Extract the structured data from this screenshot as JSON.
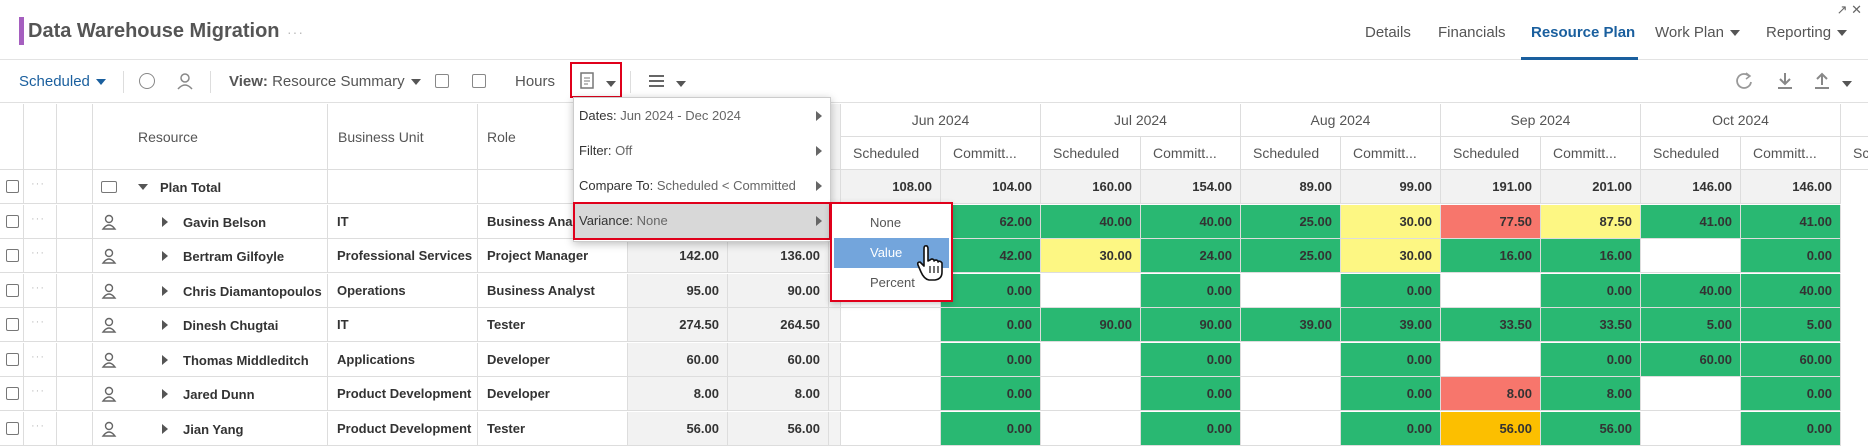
{
  "header": {
    "title": "Data Warehouse Migration",
    "more": "···",
    "tabs": [
      "Details",
      "Financials",
      "Resource Plan",
      "Work Plan",
      "Reporting"
    ],
    "active_tab": "Resource Plan",
    "window_icons": "↗ ✕"
  },
  "toolbar": {
    "scheduled_label": "Scheduled",
    "view_prefix": "View:",
    "view_value": "Resource Summary",
    "hours_label": "Hours"
  },
  "columns": {
    "resource": "Resource",
    "business_unit": "Business Unit",
    "role": "Role",
    "months": [
      "Jun 2024",
      "Jul 2024",
      "Aug 2024",
      "Sep 2024",
      "Oct 2024"
    ],
    "scheduled": "Scheduled",
    "committed": "Committ...",
    "partial": "Sc"
  },
  "plan_total": {
    "label": "Plan Total",
    "values": [
      "108.00",
      "104.00",
      "160.00",
      "154.00",
      "89.00",
      "99.00",
      "191.00",
      "201.00",
      "146.00",
      "146.00"
    ]
  },
  "rows": [
    {
      "name": "Gavin Belson",
      "bu": "IT",
      "role": "Business Analyst",
      "sched": "",
      "comm": "",
      "cells": [
        "",
        "62.00",
        "40.00",
        "40.00",
        "25.00",
        "30.00",
        "77.50",
        "87.50",
        "41.00",
        "41.00"
      ],
      "colors": [
        "",
        "g",
        "g",
        "g",
        "g",
        "y",
        "r",
        "y",
        "g",
        "g"
      ]
    },
    {
      "name": "Bertram Gilfoyle",
      "bu": "Professional Services",
      "role": "Project Manager",
      "sched": "142.00",
      "comm": "136.00",
      "cells": [
        "",
        "42.00",
        "30.00",
        "24.00",
        "25.00",
        "30.00",
        "16.00",
        "16.00",
        "",
        "0.00"
      ],
      "colors": [
        "",
        "g",
        "y",
        "g",
        "g",
        "y",
        "g",
        "g",
        "",
        "g"
      ]
    },
    {
      "name": "Chris Diamantopoulos",
      "bu": "Operations",
      "role": "Business Analyst",
      "sched": "95.00",
      "comm": "90.00",
      "cells": [
        "",
        "0.00",
        "",
        "0.00",
        "",
        "0.00",
        "",
        "0.00",
        "40.00",
        "40.00"
      ],
      "colors": [
        "",
        "g",
        "",
        "g",
        "",
        "g",
        "",
        "g",
        "g",
        "g"
      ]
    },
    {
      "name": "Dinesh Chugtai",
      "bu": "IT",
      "role": "Tester",
      "sched": "274.50",
      "comm": "264.50",
      "cells": [
        "",
        "0.00",
        "90.00",
        "90.00",
        "39.00",
        "39.00",
        "33.50",
        "33.50",
        "5.00",
        "5.00"
      ],
      "colors": [
        "",
        "g",
        "g",
        "g",
        "g",
        "g",
        "g",
        "g",
        "g",
        "g"
      ]
    },
    {
      "name": "Thomas Middleditch",
      "bu": "Applications",
      "role": "Developer",
      "sched": "60.00",
      "comm": "60.00",
      "cells": [
        "",
        "0.00",
        "",
        "0.00",
        "",
        "0.00",
        "",
        "0.00",
        "60.00",
        "60.00"
      ],
      "colors": [
        "",
        "g",
        "",
        "g",
        "",
        "g",
        "",
        "g",
        "g",
        "g"
      ]
    },
    {
      "name": "Jared Dunn",
      "bu": "Product Development",
      "role": "Developer",
      "sched": "8.00",
      "comm": "8.00",
      "cells": [
        "",
        "0.00",
        "",
        "0.00",
        "",
        "0.00",
        "8.00",
        "8.00",
        "",
        "0.00"
      ],
      "colors": [
        "",
        "g",
        "",
        "g",
        "",
        "g",
        "r",
        "g",
        "",
        "g"
      ]
    },
    {
      "name": "Jian Yang",
      "bu": "Product Development",
      "role": "Tester",
      "sched": "56.00",
      "comm": "56.00",
      "cells": [
        "",
        "0.00",
        "",
        "0.00",
        "",
        "0.00",
        "56.00",
        "56.00",
        "",
        "0.00"
      ],
      "colors": [
        "",
        "g",
        "",
        "g",
        "",
        "g",
        "o",
        "g",
        "",
        "g"
      ]
    }
  ],
  "dropdown": {
    "dates_label": "Dates:",
    "dates_value": "Jun 2024 - Dec 2024",
    "filter_label": "Filter:",
    "filter_value": "Off",
    "compare_label": "Compare To:",
    "compare_value": "Scheduled < Committed",
    "variance_label": "Variance:",
    "variance_value": "None"
  },
  "submenu": [
    "None",
    "Value",
    "Percent"
  ],
  "colors": {
    "green": "#29b872",
    "yellow": "#fdf783",
    "red": "#f7766c",
    "orange": "#fcbf00",
    "accent": "#1a5f9e"
  }
}
